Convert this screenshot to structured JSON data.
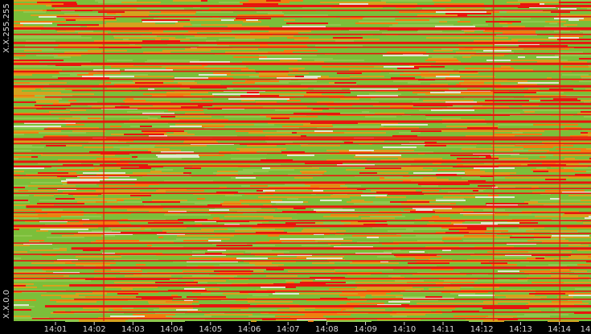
{
  "chart_data": {
    "type": "heatmap",
    "x_axis": {
      "tick_labels": [
        "14:01",
        "14:02",
        "14:03",
        "14:04",
        "14:05",
        "14:06",
        "14:07",
        "14:08",
        "14:09",
        "14:10",
        "14:11",
        "14:12",
        "14:13",
        "14:14",
        "14"
      ]
    },
    "y_axis": {
      "top_label": "X.X.255.255",
      "bottom_label": "X.X.0.0",
      "range": [
        "X.X.0.0",
        "X.X.255.255"
      ]
    },
    "color_scale": {
      "low": "#7bbf3a",
      "mid": "#d6a21e",
      "high": "#e8150e",
      "mid_alt": "#ef7f10",
      "sparse": "#dfe9d0"
    },
    "background": "#000000",
    "tick_color": "#dcdcdc",
    "hot_rows": [
      0.015,
      0.03,
      0.05,
      0.085,
      0.09,
      0.105,
      0.13,
      0.145,
      0.165,
      0.195,
      0.22,
      0.245,
      0.265,
      0.28,
      0.3,
      0.32,
      0.335,
      0.355,
      0.375,
      0.4,
      0.425,
      0.43,
      0.445,
      0.475,
      0.5,
      0.515,
      0.545,
      0.565,
      0.585,
      0.6,
      0.64,
      0.66,
      0.685,
      0.7,
      0.725,
      0.755,
      0.77,
      0.79,
      0.81,
      0.83,
      0.85,
      0.865,
      0.885,
      0.905,
      0.93,
      0.95,
      0.97,
      0.99
    ],
    "hot_columns": [
      0.155,
      0.83,
      0.945
    ]
  }
}
